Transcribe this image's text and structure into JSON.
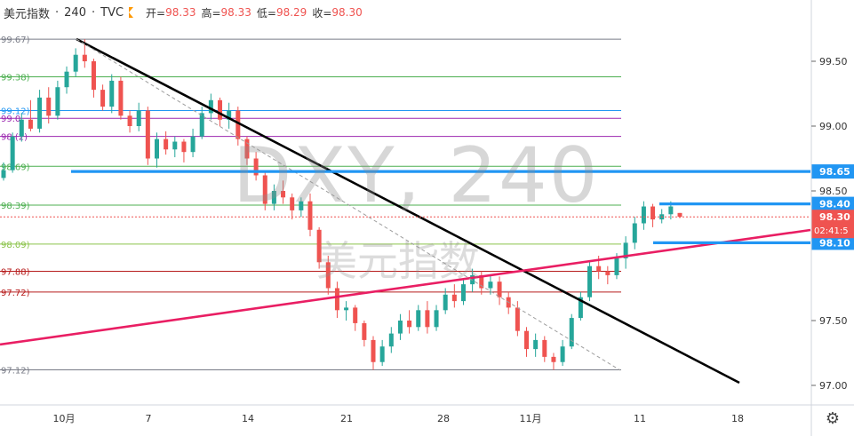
{
  "header": {
    "symbol_name": "美元指数",
    "interval": "240",
    "source": "TVC",
    "open_label": "开=",
    "open": "98.33",
    "high_label": "高=",
    "high": "98.33",
    "low_label": "低=",
    "low": "98.29",
    "close_label": "收=",
    "close": "98.30"
  },
  "watermark": {
    "symbol": "DXY, 240",
    "name": "美元指数"
  },
  "colors": {
    "up": "#26a69a",
    "down": "#ef5350",
    "trendline": "#000000",
    "support_line": "#e91e63",
    "horizontal_level": "#2196f3",
    "price_badge": "#ef5350"
  },
  "chart_data": {
    "type": "candlestick",
    "ylim": [
      96.9,
      99.9
    ],
    "y_ticks": [
      "99.50",
      "99.00",
      "98.50",
      "97.50",
      "97.00"
    ],
    "x_ticks": [
      "10月",
      "7",
      "14",
      "21",
      "28",
      "11月",
      "11",
      "18"
    ],
    "fib_levels": [
      {
        "label": "99.67)",
        "value": 99.67,
        "color": "#787b86"
      },
      {
        "label": "99.38)",
        "value": 99.38,
        "color": "#4caf50"
      },
      {
        "label": "99.12)",
        "value": 99.12,
        "color": "#2196f3"
      },
      {
        "label": "99.0",
        "value": 99.06,
        "color": "#9c27b0"
      },
      {
        "label": "98.(2)",
        "value": 98.92,
        "color": "#9c27b0"
      },
      {
        "label": "98.69)",
        "value": 98.69,
        "color": "#4caf50"
      },
      {
        "label": "98.39)",
        "value": 98.39,
        "color": "#4caf50"
      },
      {
        "label": "98.09)",
        "value": 98.09,
        "color": "#8bc34a"
      },
      {
        "label": "97.88)",
        "value": 97.88,
        "color": "#b71c1c"
      },
      {
        "label": "97.72)",
        "value": 97.72,
        "color": "#b71c1c"
      },
      {
        "label": "97.12)",
        "value": 97.12,
        "color": "#787b86"
      }
    ],
    "horizontal_levels": [
      {
        "label": "98.65",
        "value": 98.65
      },
      {
        "label": "98.40",
        "value": 98.4
      },
      {
        "label": "98.10",
        "value": 98.1
      }
    ],
    "last_price": {
      "label": "98.30",
      "value": 98.3,
      "countdown": "02:41:5"
    },
    "candles": [
      [
        98.6,
        98.72,
        98.58,
        98.66
      ],
      [
        98.66,
        98.95,
        98.64,
        98.92
      ],
      [
        98.92,
        99.1,
        98.88,
        99.05
      ],
      [
        99.05,
        99.2,
        98.96,
        98.98
      ],
      [
        98.98,
        99.28,
        98.95,
        99.22
      ],
      [
        99.22,
        99.3,
        99.02,
        99.08
      ],
      [
        99.08,
        99.35,
        99.05,
        99.3
      ],
      [
        99.3,
        99.46,
        99.25,
        99.42
      ],
      [
        99.42,
        99.6,
        99.38,
        99.55
      ],
      [
        99.55,
        99.67,
        99.45,
        99.5
      ],
      [
        99.5,
        99.52,
        99.22,
        99.28
      ],
      [
        99.28,
        99.32,
        99.12,
        99.15
      ],
      [
        99.15,
        99.4,
        99.1,
        99.35
      ],
      [
        99.35,
        99.38,
        99.05,
        99.08
      ],
      [
        99.08,
        99.12,
        98.95,
        99.0
      ],
      [
        99.0,
        99.18,
        98.96,
        99.12
      ],
      [
        99.12,
        99.15,
        98.7,
        98.75
      ],
      [
        98.75,
        98.95,
        98.68,
        98.9
      ],
      [
        98.9,
        98.96,
        98.78,
        98.82
      ],
      [
        98.82,
        98.92,
        98.76,
        98.88
      ],
      [
        98.88,
        98.9,
        98.72,
        98.8
      ],
      [
        98.8,
        98.98,
        98.76,
        98.92
      ],
      [
        98.92,
        99.15,
        98.9,
        99.1
      ],
      [
        99.1,
        99.25,
        99.05,
        99.2
      ],
      [
        99.2,
        99.22,
        99.0,
        99.05
      ],
      [
        99.05,
        99.18,
        98.98,
        99.12
      ],
      [
        99.12,
        99.15,
        98.85,
        98.9
      ],
      [
        98.9,
        98.92,
        98.7,
        98.75
      ],
      [
        98.75,
        98.8,
        98.58,
        98.62
      ],
      [
        98.62,
        98.65,
        98.35,
        98.4
      ],
      [
        98.4,
        98.55,
        98.35,
        98.5
      ],
      [
        98.5,
        98.58,
        98.4,
        98.45
      ],
      [
        98.45,
        98.48,
        98.28,
        98.35
      ],
      [
        98.35,
        98.45,
        98.3,
        98.42
      ],
      [
        98.42,
        98.48,
        98.15,
        98.2
      ],
      [
        98.2,
        98.22,
        97.9,
        97.95
      ],
      [
        97.95,
        98.0,
        97.7,
        97.75
      ],
      [
        97.75,
        97.8,
        97.52,
        97.58
      ],
      [
        97.58,
        97.65,
        97.5,
        97.6
      ],
      [
        97.6,
        97.62,
        97.42,
        97.48
      ],
      [
        97.48,
        97.5,
        97.3,
        97.35
      ],
      [
        97.35,
        97.38,
        97.12,
        97.18
      ],
      [
        97.18,
        97.35,
        97.15,
        97.3
      ],
      [
        97.3,
        97.45,
        97.25,
        97.4
      ],
      [
        97.4,
        97.55,
        97.35,
        97.5
      ],
      [
        97.5,
        97.58,
        97.4,
        97.45
      ],
      [
        97.45,
        97.62,
        97.42,
        97.58
      ],
      [
        97.58,
        97.65,
        97.4,
        97.45
      ],
      [
        97.45,
        97.62,
        97.42,
        97.58
      ],
      [
        97.58,
        97.75,
        97.55,
        97.7
      ],
      [
        97.7,
        97.78,
        97.6,
        97.65
      ],
      [
        97.65,
        97.82,
        97.62,
        97.78
      ],
      [
        97.78,
        97.9,
        97.72,
        97.85
      ],
      [
        97.85,
        97.88,
        97.7,
        97.75
      ],
      [
        97.75,
        97.85,
        97.7,
        97.8
      ],
      [
        97.8,
        97.84,
        97.62,
        97.68
      ],
      [
        97.68,
        97.72,
        97.55,
        97.6
      ],
      [
        97.6,
        97.65,
        97.38,
        97.42
      ],
      [
        97.42,
        97.45,
        97.22,
        97.28
      ],
      [
        97.28,
        97.4,
        97.22,
        97.35
      ],
      [
        97.35,
        97.38,
        97.18,
        97.22
      ],
      [
        97.22,
        97.25,
        97.12,
        97.18
      ],
      [
        97.18,
        97.35,
        97.15,
        97.3
      ],
      [
        97.3,
        97.55,
        97.28,
        97.52
      ],
      [
        97.52,
        97.72,
        97.5,
        97.68
      ],
      [
        97.68,
        97.95,
        97.65,
        97.92
      ],
      [
        97.92,
        98.0,
        97.82,
        97.88
      ],
      [
        97.88,
        97.92,
        97.78,
        97.85
      ],
      [
        97.85,
        98.02,
        97.82,
        97.98
      ],
      [
        97.98,
        98.15,
        97.9,
        98.1
      ],
      [
        98.1,
        98.3,
        98.05,
        98.25
      ],
      [
        98.25,
        98.42,
        98.2,
        98.38
      ],
      [
        98.38,
        98.4,
        98.22,
        98.28
      ],
      [
        98.28,
        98.36,
        98.25,
        98.32
      ],
      [
        98.32,
        98.42,
        98.28,
        98.38
      ],
      [
        98.33,
        98.33,
        98.29,
        98.3
      ]
    ]
  }
}
